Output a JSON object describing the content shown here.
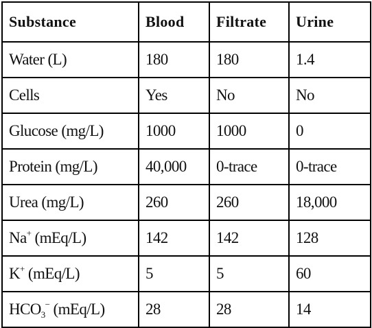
{
  "table": {
    "headers": [
      "Substance",
      "Blood",
      "Filtrate",
      "Urine"
    ],
    "rows": [
      {
        "substance": {
          "base": "Water (L)"
        },
        "blood": "180",
        "filtrate": "180",
        "urine": "1.4"
      },
      {
        "substance": {
          "base": "Cells"
        },
        "blood": "Yes",
        "filtrate": "No",
        "urine": "No"
      },
      {
        "substance": {
          "base": "Glucose (mg/L)"
        },
        "blood": "1000",
        "filtrate": "1000",
        "urine": "0"
      },
      {
        "substance": {
          "base": "Protein (mg/L)"
        },
        "blood": "40,000",
        "filtrate": "0-trace",
        "urine": "0-trace"
      },
      {
        "substance": {
          "base": "Urea (mg/L)"
        },
        "blood": "260",
        "filtrate": "260",
        "urine": "18,000"
      },
      {
        "substance": {
          "base": "Na",
          "sup": "+",
          "unit": " (mEq/L)"
        },
        "blood": "142",
        "filtrate": "142",
        "urine": "128"
      },
      {
        "substance": {
          "base": "K",
          "sup": "+",
          "unit": " (mEq/L)"
        },
        "blood": "5",
        "filtrate": "5",
        "urine": "60"
      },
      {
        "substance": {
          "base": "HCO",
          "sub": "3",
          "sup": "−",
          "unit": " (mEq/L)"
        },
        "blood": "28",
        "filtrate": "28",
        "urine": "14"
      }
    ]
  }
}
